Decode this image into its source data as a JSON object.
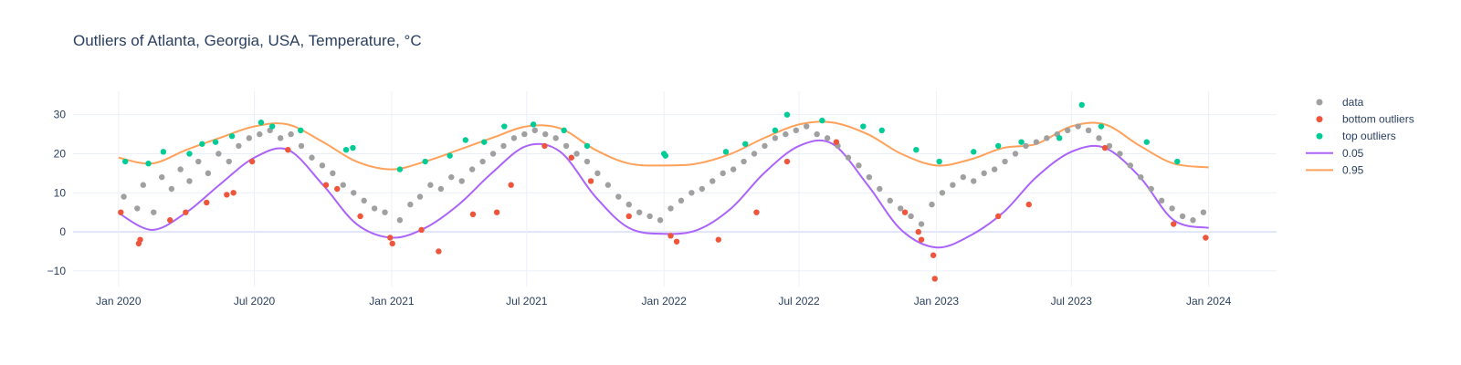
{
  "chart_data": {
    "type": "scatter",
    "title": "Outliers of Atlanta, Georgia, USA, Temperature, °C",
    "xlabel": "",
    "ylabel": "",
    "xlim": [
      "2019-11-01",
      "2024-04-01"
    ],
    "ylim": [
      -14,
      36
    ],
    "grid": true,
    "legend_position": "top-right",
    "x_ticks": [
      {
        "date": "2020-01-01",
        "label": "Jan 2020"
      },
      {
        "date": "2020-07-01",
        "label": "Jul 2020"
      },
      {
        "date": "2021-01-01",
        "label": "Jan 2021"
      },
      {
        "date": "2021-07-01",
        "label": "Jul 2021"
      },
      {
        "date": "2022-01-01",
        "label": "Jan 2022"
      },
      {
        "date": "2022-07-01",
        "label": "Jul 2022"
      },
      {
        "date": "2023-01-01",
        "label": "Jan 2023"
      },
      {
        "date": "2023-07-01",
        "label": "Jul 2023"
      },
      {
        "date": "2024-01-01",
        "label": "Jan 2024"
      }
    ],
    "y_ticks": [
      -10,
      0,
      10,
      20,
      30
    ],
    "series": [
      {
        "name": "data",
        "kind": "markers",
        "color": "#a0a0a0",
        "x": [
          "2020-01-08",
          "2020-01-26",
          "2020-02-03",
          "2020-02-17",
          "2020-02-28",
          "2020-03-12",
          "2020-03-24",
          "2020-04-05",
          "2020-04-17",
          "2020-04-30",
          "2020-05-14",
          "2020-05-28",
          "2020-06-10",
          "2020-06-24",
          "2020-07-08",
          "2020-07-22",
          "2020-08-05",
          "2020-08-19",
          "2020-09-02",
          "2020-09-16",
          "2020-09-30",
          "2020-10-14",
          "2020-10-28",
          "2020-11-11",
          "2020-11-25",
          "2020-12-09",
          "2020-12-23",
          "2021-01-12",
          "2021-01-26",
          "2021-02-08",
          "2021-02-22",
          "2021-03-08",
          "2021-03-22",
          "2021-04-05",
          "2021-04-19",
          "2021-05-03",
          "2021-05-17",
          "2021-05-31",
          "2021-06-14",
          "2021-06-28",
          "2021-07-12",
          "2021-07-26",
          "2021-08-09",
          "2021-08-23",
          "2021-09-06",
          "2021-09-20",
          "2021-10-04",
          "2021-10-18",
          "2021-11-01",
          "2021-11-15",
          "2021-11-29",
          "2021-12-13",
          "2021-12-27",
          "2022-01-10",
          "2022-01-24",
          "2022-02-07",
          "2022-02-21",
          "2022-03-07",
          "2022-03-21",
          "2022-04-04",
          "2022-04-18",
          "2022-05-02",
          "2022-05-16",
          "2022-05-30",
          "2022-06-13",
          "2022-06-27",
          "2022-07-11",
          "2022-07-25",
          "2022-08-08",
          "2022-08-22",
          "2022-09-05",
          "2022-09-19",
          "2022-10-03",
          "2022-10-17",
          "2022-10-31",
          "2022-11-14",
          "2022-11-28",
          "2022-12-12",
          "2022-12-26",
          "2023-01-09",
          "2023-01-23",
          "2023-02-06",
          "2023-02-20",
          "2023-03-06",
          "2023-03-20",
          "2023-04-03",
          "2023-04-17",
          "2023-05-01",
          "2023-05-15",
          "2023-05-29",
          "2023-06-12",
          "2023-06-26",
          "2023-07-10",
          "2023-07-24",
          "2023-08-07",
          "2023-08-21",
          "2023-09-04",
          "2023-09-18",
          "2023-10-02",
          "2023-10-16",
          "2023-10-30",
          "2023-11-13",
          "2023-11-27",
          "2023-12-11",
          "2023-12-25"
        ],
        "y": [
          9,
          6,
          12,
          5,
          14,
          11,
          16,
          13,
          18,
          15,
          20,
          18,
          22,
          24,
          25,
          26,
          24,
          25,
          22,
          19,
          17,
          15,
          12,
          10,
          8,
          6,
          5,
          3,
          7,
          9,
          12,
          11,
          14,
          13,
          16,
          18,
          20,
          22,
          24,
          25,
          26,
          25,
          24,
          22,
          20,
          18,
          15,
          12,
          9,
          7,
          5,
          4,
          3,
          6,
          8,
          10,
          11,
          13,
          15,
          16,
          18,
          20,
          22,
          24,
          25,
          26,
          27,
          25,
          24,
          22,
          19,
          17,
          14,
          11,
          8,
          6,
          4,
          2,
          7,
          10,
          12,
          14,
          13,
          15,
          16,
          18,
          20,
          22,
          23,
          24,
          25,
          26,
          27,
          26,
          24,
          22,
          20,
          17,
          14,
          11,
          8,
          6,
          4,
          3,
          5
        ]
      },
      {
        "name": "bottom outliers",
        "kind": "markers",
        "color": "#ef553b",
        "x": [
          "2020-01-04",
          "2020-01-28",
          "2020-01-30",
          "2020-03-10",
          "2020-03-31",
          "2020-04-28",
          "2020-05-25",
          "2020-06-03",
          "2020-06-28",
          "2020-08-15",
          "2020-10-05",
          "2020-10-20",
          "2020-11-20",
          "2020-12-30",
          "2021-01-02",
          "2021-02-10",
          "2021-03-05",
          "2021-04-20",
          "2021-05-22",
          "2021-06-10",
          "2021-07-25",
          "2021-08-30",
          "2021-09-25",
          "2021-11-15",
          "2022-01-10",
          "2022-01-18",
          "2022-03-15",
          "2022-05-05",
          "2022-06-15",
          "2022-08-20",
          "2022-11-20",
          "2022-12-08",
          "2022-12-12",
          "2022-12-28",
          "2022-12-30",
          "2023-03-25",
          "2023-05-05",
          "2023-08-15",
          "2023-11-15",
          "2023-12-28"
        ],
        "y": [
          5,
          -3,
          -2,
          3,
          5,
          7.5,
          9.5,
          10,
          18,
          21,
          12,
          11,
          4,
          -1.5,
          -3,
          0.5,
          -5,
          4.5,
          5,
          12,
          22,
          19,
          13,
          4,
          -1,
          -2.5,
          -2,
          5,
          18,
          23,
          5,
          0,
          -2,
          -6,
          -12,
          4,
          7,
          21.5,
          2,
          -1.5
        ]
      },
      {
        "name": "top outliers",
        "kind": "markers",
        "color": "#00cc96",
        "x": [
          "2020-01-10",
          "2020-02-10",
          "2020-03-01",
          "2020-04-05",
          "2020-04-22",
          "2020-05-10",
          "2020-06-01",
          "2020-07-10",
          "2020-07-25",
          "2020-09-01",
          "2020-11-01",
          "2020-11-10",
          "2021-01-12",
          "2021-02-15",
          "2021-03-20",
          "2021-04-10",
          "2021-05-05",
          "2021-06-01",
          "2021-07-10",
          "2021-08-20",
          "2021-09-20",
          "2022-01-01",
          "2022-01-03",
          "2022-03-25",
          "2022-04-20",
          "2022-05-30",
          "2022-06-15",
          "2022-08-01",
          "2022-09-25",
          "2022-10-20",
          "2022-12-05",
          "2023-01-05",
          "2023-02-20",
          "2023-03-25",
          "2023-04-25",
          "2023-06-15",
          "2023-07-15",
          "2023-08-10",
          "2023-10-10",
          "2023-11-20"
        ],
        "y": [
          18,
          17.5,
          20.5,
          20,
          22.5,
          23,
          24.5,
          28,
          27,
          26,
          21,
          21.5,
          16,
          18,
          19.5,
          23.5,
          23,
          27,
          27.5,
          26,
          22,
          20,
          19.5,
          20.5,
          22.5,
          26,
          30,
          28.5,
          27,
          26,
          21,
          18,
          20.5,
          22,
          23,
          24,
          32.5,
          27,
          23,
          18
        ]
      },
      {
        "name": "0.05",
        "kind": "line",
        "color": "#ab63fa",
        "x": [
          "2020-01-01",
          "2020-02-15",
          "2020-04-01",
          "2020-05-15",
          "2020-07-01",
          "2020-08-15",
          "2020-10-01",
          "2020-11-15",
          "2021-01-01",
          "2021-02-15",
          "2021-04-01",
          "2021-05-15",
          "2021-07-01",
          "2021-08-15",
          "2021-10-01",
          "2021-11-15",
          "2022-01-01",
          "2022-02-15",
          "2022-04-01",
          "2022-05-15",
          "2022-07-01",
          "2022-08-15",
          "2022-10-01",
          "2022-11-15",
          "2023-01-01",
          "2023-02-15",
          "2023-04-01",
          "2023-05-15",
          "2023-07-01",
          "2023-08-15",
          "2023-10-01",
          "2023-11-15",
          "2024-01-01"
        ],
        "y": [
          4.8,
          0.5,
          5,
          12,
          19,
          21,
          12,
          2,
          -1.5,
          1,
          7,
          15,
          22,
          20.5,
          9,
          1,
          -0.5,
          0.5,
          6,
          15,
          22,
          22.5,
          12,
          0.5,
          -4,
          -1,
          5,
          14,
          20.5,
          21.5,
          14,
          3,
          1
        ]
      },
      {
        "name": "0.95",
        "kind": "line",
        "color": "#ffa15a",
        "x": [
          "2020-01-01",
          "2020-02-15",
          "2020-04-01",
          "2020-05-15",
          "2020-07-01",
          "2020-08-15",
          "2020-10-01",
          "2020-11-15",
          "2021-01-01",
          "2021-02-15",
          "2021-04-01",
          "2021-05-15",
          "2021-07-01",
          "2021-08-15",
          "2021-10-01",
          "2021-11-15",
          "2022-01-01",
          "2022-02-15",
          "2022-04-01",
          "2022-05-15",
          "2022-07-01",
          "2022-08-15",
          "2022-10-01",
          "2022-11-15",
          "2023-01-01",
          "2023-02-15",
          "2023-04-01",
          "2023-05-15",
          "2023-07-01",
          "2023-08-15",
          "2023-10-01",
          "2023-11-15",
          "2024-01-01"
        ],
        "y": [
          19,
          17.5,
          21,
          24,
          27,
          27.5,
          23,
          18,
          16,
          18,
          21,
          24,
          27,
          26.5,
          21,
          17.5,
          17,
          17.5,
          20,
          24,
          27.5,
          28,
          25,
          20,
          17,
          18.5,
          21.5,
          22.5,
          27,
          27.5,
          22,
          17.5,
          16.5
        ]
      }
    ]
  }
}
